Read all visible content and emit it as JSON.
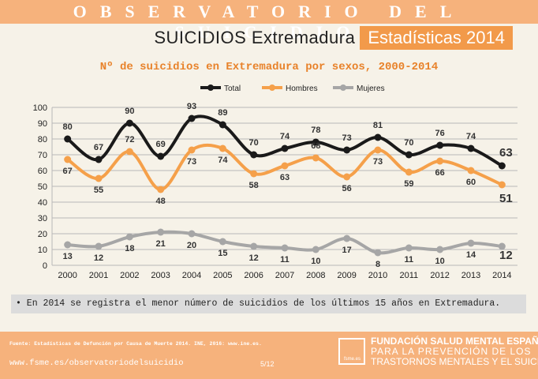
{
  "header": {
    "brand": "OBSERVATORIO DEL SUICIDIO",
    "region_label": "SUICIDIOS Extremadura",
    "stats_label": "Estadísticas 2014"
  },
  "note": "• En 2014 se registra el menor número de suicidios de los últimos 15 años en Extremadura.",
  "footer": {
    "source": "Fuente: Estadísticas de Defunción por Causa de Muerte 2014. INE, 2016: www.ine.es.",
    "website": "www.fsme.es/observatoriodelsuicidio",
    "page": "5/12",
    "logo_text": "fsme.es",
    "org_line1": "FUNDACIÓN SALUD MENTAL ESPAÑA",
    "org_line2": "PARA LA PREVENCIÓN DE LOS",
    "org_line3": "TRASTORNOS MENTALES Y EL SUICIDIO"
  },
  "colors": {
    "Total": "#1a1a1a",
    "Hombres": "#f5a04a",
    "Mujeres": "#a6a6a6",
    "accent": "#f29a4a"
  },
  "chart_data": {
    "type": "line",
    "title": "Nº de suicidios en Extremadura por sexos, 2000-2014",
    "categories": [
      "2000",
      "2001",
      "2002",
      "2003",
      "2004",
      "2005",
      "2006",
      "2007",
      "2008",
      "2009",
      "2010",
      "2011",
      "2012",
      "2013",
      "2014"
    ],
    "series": [
      {
        "name": "Total",
        "values": [
          80,
          67,
          90,
          69,
          93,
          89,
          70,
          74,
          78,
          73,
          81,
          70,
          76,
          74,
          63
        ]
      },
      {
        "name": "Hombres",
        "values": [
          67,
          55,
          72,
          48,
          73,
          74,
          58,
          63,
          68,
          56,
          73,
          59,
          66,
          60,
          51
        ]
      },
      {
        "name": "Mujeres",
        "values": [
          13,
          12,
          18,
          21,
          20,
          15,
          12,
          11,
          10,
          17,
          8,
          11,
          10,
          14,
          12
        ]
      }
    ],
    "ylim": [
      0,
      100
    ],
    "yticks": [
      "0",
      "10",
      "20",
      "30",
      "40",
      "50",
      "60",
      "70",
      "80",
      "90",
      "100"
    ],
    "grid": true,
    "legend": "top-center",
    "xlabel": "",
    "ylabel": ""
  }
}
